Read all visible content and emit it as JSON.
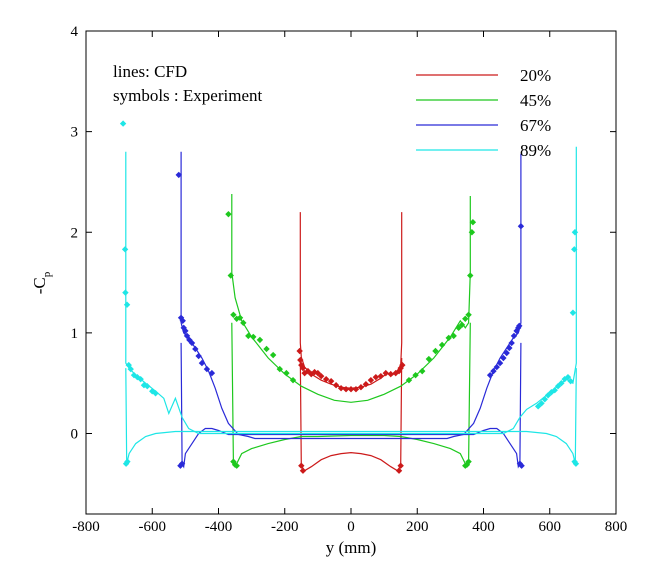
{
  "chart_data": {
    "type": "line",
    "xlabel": "y (mm)",
    "ylabel": "-C",
    "ylabel_sub": "p",
    "xlim": [
      -800,
      800
    ],
    "ylim": [
      -0.8,
      4
    ],
    "xticks": [
      -800,
      -600,
      -400,
      -200,
      0,
      200,
      400,
      600,
      800
    ],
    "yticks": [
      0,
      1,
      2,
      3,
      4
    ],
    "grid": false,
    "annotations": [
      "lines: CFD",
      "symbols : Experiment"
    ],
    "legend_placement": "top-right",
    "series": [
      {
        "name": "20%",
        "color": "#cc1a1a",
        "cfd_upper": [
          [
            -153,
            2.2
          ],
          [
            -153,
            0.9
          ],
          [
            -150,
            0.76
          ],
          [
            -140,
            0.66
          ],
          [
            -120,
            0.59
          ],
          [
            -90,
            0.53
          ],
          [
            -60,
            0.49
          ],
          [
            -30,
            0.46
          ],
          [
            0,
            0.45
          ],
          [
            30,
            0.46
          ],
          [
            60,
            0.49
          ],
          [
            90,
            0.55
          ],
          [
            110,
            0.6
          ],
          [
            125,
            0.58
          ],
          [
            140,
            0.62
          ],
          [
            150,
            0.68
          ],
          [
            153,
            0.9
          ],
          [
            153,
            2.2
          ]
        ],
        "cfd_lower": [
          [
            -153,
            0.75
          ],
          [
            -150,
            -0.32
          ],
          [
            -140,
            -0.37
          ],
          [
            -120,
            -0.33
          ],
          [
            -90,
            -0.26
          ],
          [
            -60,
            -0.22
          ],
          [
            -30,
            -0.2
          ],
          [
            0,
            -0.19
          ],
          [
            30,
            -0.2
          ],
          [
            60,
            -0.22
          ],
          [
            90,
            -0.26
          ],
          [
            120,
            -0.33
          ],
          [
            140,
            -0.37
          ],
          [
            150,
            -0.32
          ],
          [
            153,
            0.75
          ]
        ],
        "experiment": [
          [
            -155,
            0.82
          ],
          [
            -153,
            0.73
          ],
          [
            -150,
            0.68
          ],
          [
            -145,
            0.65
          ],
          [
            -140,
            0.6
          ],
          [
            -130,
            0.62
          ],
          [
            -120,
            0.59
          ],
          [
            -110,
            0.61
          ],
          [
            -100,
            0.6
          ],
          [
            -90,
            0.57
          ],
          [
            -75,
            0.54
          ],
          [
            -60,
            0.52
          ],
          [
            -45,
            0.48
          ],
          [
            -30,
            0.45
          ],
          [
            -15,
            0.44
          ],
          [
            0,
            0.44
          ],
          [
            15,
            0.44
          ],
          [
            30,
            0.46
          ],
          [
            45,
            0.49
          ],
          [
            60,
            0.53
          ],
          [
            75,
            0.56
          ],
          [
            90,
            0.57
          ],
          [
            105,
            0.6
          ],
          [
            120,
            0.59
          ],
          [
            135,
            0.6
          ],
          [
            145,
            0.62
          ],
          [
            150,
            0.65
          ],
          [
            155,
            0.68
          ],
          [
            -150,
            -0.32
          ],
          [
            -145,
            -0.37
          ],
          [
            145,
            -0.37
          ],
          [
            150,
            -0.32
          ]
        ]
      },
      {
        "name": "45%",
        "color": "#1ec81e",
        "cfd_upper": [
          [
            -360,
            2.38
          ],
          [
            -360,
            1.6
          ],
          [
            -350,
            1.35
          ],
          [
            -330,
            1.12
          ],
          [
            -300,
            0.96
          ],
          [
            -250,
            0.75
          ],
          [
            -200,
            0.59
          ],
          [
            -150,
            0.47
          ],
          [
            -100,
            0.39
          ],
          [
            -50,
            0.33
          ],
          [
            0,
            0.31
          ],
          [
            50,
            0.33
          ],
          [
            100,
            0.39
          ],
          [
            150,
            0.47
          ],
          [
            200,
            0.59
          ],
          [
            250,
            0.75
          ],
          [
            300,
            0.96
          ],
          [
            330,
            1.12
          ],
          [
            345,
            1.05
          ],
          [
            355,
            1.1
          ],
          [
            360,
            1.6
          ],
          [
            360,
            2.36
          ]
        ],
        "cfd_lower": [
          [
            -360,
            1.1
          ],
          [
            -355,
            -0.28
          ],
          [
            -345,
            -0.3
          ],
          [
            -330,
            -0.2
          ],
          [
            -300,
            -0.15
          ],
          [
            -250,
            -0.1
          ],
          [
            -200,
            -0.06
          ],
          [
            -150,
            -0.03
          ],
          [
            -100,
            -0.03
          ],
          [
            0,
            -0.02
          ],
          [
            100,
            -0.02
          ],
          [
            150,
            -0.03
          ],
          [
            200,
            -0.06
          ],
          [
            250,
            -0.1
          ],
          [
            300,
            -0.15
          ],
          [
            330,
            -0.2
          ],
          [
            345,
            -0.3
          ],
          [
            355,
            -0.28
          ],
          [
            360,
            1.1
          ]
        ],
        "experiment": [
          [
            -370,
            2.18
          ],
          [
            -363,
            1.57
          ],
          [
            -355,
            1.18
          ],
          [
            -345,
            1.14
          ],
          [
            -335,
            1.15
          ],
          [
            -325,
            1.1
          ],
          [
            -310,
            0.97
          ],
          [
            -295,
            0.96
          ],
          [
            -275,
            0.93
          ],
          [
            -255,
            0.84
          ],
          [
            -235,
            0.78
          ],
          [
            -215,
            0.64
          ],
          [
            -195,
            0.6
          ],
          [
            -175,
            0.53
          ],
          [
            175,
            0.53
          ],
          [
            195,
            0.58
          ],
          [
            215,
            0.62
          ],
          [
            235,
            0.74
          ],
          [
            255,
            0.82
          ],
          [
            275,
            0.88
          ],
          [
            295,
            0.95
          ],
          [
            310,
            0.97
          ],
          [
            325,
            1.05
          ],
          [
            335,
            1.08
          ],
          [
            345,
            1.14
          ],
          [
            355,
            1.18
          ],
          [
            360,
            1.57
          ],
          [
            365,
            2.0
          ],
          [
            368,
            2.1
          ],
          [
            -355,
            -0.28
          ],
          [
            -350,
            -0.31
          ],
          [
            -345,
            -0.32
          ],
          [
            345,
            -0.32
          ],
          [
            350,
            -0.31
          ],
          [
            355,
            -0.28
          ]
        ]
      },
      {
        "name": "67%",
        "color": "#2a2ad8",
        "cfd_upper": [
          [
            -513,
            2.8
          ],
          [
            -513,
            1.1
          ],
          [
            -505,
            1.0
          ],
          [
            -490,
            0.95
          ],
          [
            -470,
            0.85
          ],
          [
            -450,
            0.75
          ],
          [
            -430,
            0.62
          ],
          [
            -410,
            0.45
          ],
          [
            -390,
            0.25
          ],
          [
            -370,
            0.1
          ],
          [
            -340,
            -0.01
          ],
          [
            -310,
            -0.03
          ],
          [
            -290,
            -0.05
          ],
          [
            290,
            -0.05
          ],
          [
            310,
            -0.03
          ],
          [
            340,
            -0.01
          ],
          [
            370,
            0.1
          ],
          [
            390,
            0.25
          ],
          [
            410,
            0.45
          ],
          [
            430,
            0.62
          ],
          [
            450,
            0.75
          ],
          [
            470,
            0.85
          ],
          [
            490,
            0.95
          ],
          [
            505,
            1.0
          ],
          [
            513,
            1.1
          ],
          [
            513,
            2.78
          ]
        ],
        "cfd_lower": [
          [
            -513,
            0.9
          ],
          [
            -510,
            -0.3
          ],
          [
            -505,
            -0.33
          ],
          [
            -500,
            -0.2
          ],
          [
            -480,
            -0.1
          ],
          [
            -460,
            0.0
          ],
          [
            -440,
            0.05
          ],
          [
            -420,
            0.05
          ],
          [
            -400,
            0.03
          ],
          [
            -370,
            -0.01
          ],
          [
            370,
            -0.01
          ],
          [
            400,
            0.03
          ],
          [
            420,
            0.05
          ],
          [
            440,
            0.05
          ],
          [
            460,
            0.0
          ],
          [
            480,
            -0.1
          ],
          [
            500,
            -0.2
          ],
          [
            505,
            -0.33
          ],
          [
            510,
            -0.3
          ],
          [
            513,
            0.9
          ]
        ],
        "experiment": [
          [
            -520,
            2.57
          ],
          [
            -513,
            1.15
          ],
          [
            -508,
            1.12
          ],
          [
            -505,
            1.05
          ],
          [
            -500,
            1.02
          ],
          [
            -495,
            0.97
          ],
          [
            -488,
            0.93
          ],
          [
            -480,
            0.9
          ],
          [
            -470,
            0.84
          ],
          [
            -460,
            0.77
          ],
          [
            -450,
            0.7
          ],
          [
            -435,
            0.64
          ],
          [
            -420,
            0.6
          ],
          [
            420,
            0.58
          ],
          [
            430,
            0.62
          ],
          [
            440,
            0.66
          ],
          [
            450,
            0.7
          ],
          [
            460,
            0.75
          ],
          [
            470,
            0.8
          ],
          [
            478,
            0.85
          ],
          [
            485,
            0.9
          ],
          [
            492,
            0.97
          ],
          [
            500,
            1.02
          ],
          [
            505,
            1.05
          ],
          [
            508,
            1.07
          ],
          [
            513,
            2.06
          ],
          [
            -515,
            -0.32
          ],
          [
            -510,
            -0.3
          ],
          [
            510,
            -0.3
          ],
          [
            515,
            -0.32
          ]
        ]
      },
      {
        "name": "89%",
        "color": "#1ee6e6",
        "cfd_upper": [
          [
            -680,
            2.8
          ],
          [
            -680,
            0.7
          ],
          [
            -670,
            0.65
          ],
          [
            -650,
            0.58
          ],
          [
            -620,
            0.5
          ],
          [
            -590,
            0.42
          ],
          [
            -565,
            0.35
          ],
          [
            -550,
            0.2
          ],
          [
            -530,
            0.35
          ],
          [
            -510,
            0.16
          ],
          [
            -490,
            0.05
          ],
          [
            -460,
            0.0
          ],
          [
            460,
            0.0
          ],
          [
            490,
            0.05
          ],
          [
            510,
            0.16
          ],
          [
            530,
            0.24
          ],
          [
            560,
            0.3
          ],
          [
            590,
            0.38
          ],
          [
            620,
            0.46
          ],
          [
            650,
            0.54
          ],
          [
            670,
            0.5
          ],
          [
            680,
            0.7
          ],
          [
            680,
            2.85
          ]
        ],
        "cfd_lower": [
          [
            -680,
            0.65
          ],
          [
            -677,
            -0.3
          ],
          [
            -670,
            -0.2
          ],
          [
            -650,
            -0.1
          ],
          [
            -620,
            -0.03
          ],
          [
            -590,
            0.0
          ],
          [
            -560,
            0.01
          ],
          [
            -530,
            0.02
          ],
          [
            530,
            0.02
          ],
          [
            560,
            0.01
          ],
          [
            590,
            0.0
          ],
          [
            620,
            -0.03
          ],
          [
            650,
            -0.1
          ],
          [
            670,
            -0.2
          ],
          [
            677,
            -0.3
          ],
          [
            680,
            0.65
          ]
        ],
        "experiment": [
          [
            -688,
            3.08
          ],
          [
            -682,
            1.83
          ],
          [
            -681,
            1.4
          ],
          [
            -676,
            1.28
          ],
          [
            -671,
            0.68
          ],
          [
            -665,
            0.64
          ],
          [
            -655,
            0.58
          ],
          [
            -645,
            0.56
          ],
          [
            -635,
            0.54
          ],
          [
            -625,
            0.48
          ],
          [
            -615,
            0.47
          ],
          [
            -600,
            0.42
          ],
          [
            -590,
            0.4
          ],
          [
            565,
            0.27
          ],
          [
            575,
            0.3
          ],
          [
            585,
            0.34
          ],
          [
            595,
            0.38
          ],
          [
            605,
            0.41
          ],
          [
            615,
            0.43
          ],
          [
            625,
            0.47
          ],
          [
            635,
            0.5
          ],
          [
            645,
            0.54
          ],
          [
            655,
            0.56
          ],
          [
            663,
            0.52
          ],
          [
            670,
            1.2
          ],
          [
            674,
            1.83
          ],
          [
            676,
            2.0
          ],
          [
            -679,
            -0.3
          ],
          [
            -675,
            -0.28
          ],
          [
            675,
            -0.28
          ],
          [
            679,
            -0.3
          ]
        ]
      }
    ]
  }
}
